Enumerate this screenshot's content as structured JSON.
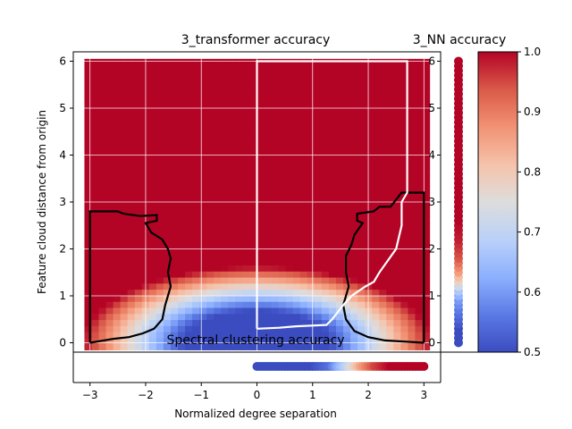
{
  "chart_data": [
    {
      "id": "main",
      "type": "heatmap",
      "title": "3_transformer accuracy",
      "xlabel": "Normalized degree separation",
      "ylabel": "Feature cloud distance from origin",
      "xlim": [
        -3.3,
        3.3
      ],
      "ylim": [
        -0.2,
        6.2
      ],
      "x_ticks": [
        -3,
        -2,
        -1,
        0,
        1,
        2,
        3
      ],
      "y_ticks": [
        0,
        1,
        2,
        3,
        4,
        5,
        6
      ],
      "x_tick_labels": [
        "−3",
        "−2",
        "−1",
        "0",
        "1",
        "2",
        "3"
      ],
      "y_tick_labels": [
        "0",
        "1",
        "2",
        "3",
        "4",
        "5",
        "6"
      ],
      "grid": true,
      "description_of_field": {
        "accuracy_range": [
          0.5,
          1.0
        ],
        "low_accuracy_dome_center_x": 0,
        "low_accuracy_dome_peak_y": 1.2
      },
      "boundary_black": [
        [
          -3.0,
          0.0
        ],
        [
          -3.0,
          2.8
        ],
        [
          -2.5,
          2.8
        ],
        [
          -2.4,
          2.75
        ],
        [
          -2.1,
          2.7
        ],
        [
          -1.8,
          2.72
        ],
        [
          -1.8,
          2.6
        ],
        [
          -2.0,
          2.55
        ],
        [
          -1.9,
          2.35
        ],
        [
          -1.7,
          2.2
        ],
        [
          -1.6,
          2.0
        ],
        [
          -1.55,
          1.8
        ],
        [
          -1.6,
          1.5
        ],
        [
          -1.55,
          1.2
        ],
        [
          -1.6,
          1.0
        ],
        [
          -1.65,
          0.8
        ],
        [
          -1.7,
          0.5
        ],
        [
          -1.85,
          0.3
        ],
        [
          -2.05,
          0.2
        ],
        [
          -2.3,
          0.12
        ],
        [
          -2.6,
          0.08
        ],
        [
          -3.0,
          0.0
        ]
      ],
      "boundary_black_right": [
        [
          3.0,
          0.0
        ],
        [
          3.0,
          3.2
        ],
        [
          2.6,
          3.2
        ],
        [
          2.4,
          2.9
        ],
        [
          2.2,
          2.9
        ],
        [
          2.1,
          2.8
        ],
        [
          1.8,
          2.75
        ],
        [
          1.8,
          2.6
        ],
        [
          1.9,
          2.55
        ],
        [
          1.75,
          2.3
        ],
        [
          1.7,
          2.1
        ],
        [
          1.6,
          1.85
        ],
        [
          1.6,
          1.5
        ],
        [
          1.65,
          1.2
        ],
        [
          1.6,
          1.0
        ],
        [
          1.55,
          0.8
        ],
        [
          1.6,
          0.5
        ],
        [
          1.75,
          0.25
        ],
        [
          2.0,
          0.12
        ],
        [
          2.3,
          0.05
        ],
        [
          3.0,
          0.0
        ]
      ],
      "boundary_white": [
        [
          0.0,
          0.3
        ],
        [
          0.0,
          6.0
        ],
        [
          2.7,
          6.0
        ],
        [
          2.7,
          3.2
        ],
        [
          2.6,
          3.0
        ],
        [
          2.6,
          2.5
        ],
        [
          2.5,
          2.0
        ],
        [
          2.2,
          1.5
        ],
        [
          2.1,
          1.3
        ],
        [
          1.95,
          1.2
        ],
        [
          1.7,
          1.0
        ],
        [
          1.55,
          0.8
        ],
        [
          1.35,
          0.5
        ],
        [
          1.25,
          0.38
        ],
        [
          0.7,
          0.35
        ],
        [
          0.4,
          0.32
        ],
        [
          0.0,
          0.3
        ]
      ]
    },
    {
      "id": "nn",
      "type": "scatter",
      "title": "3_NN accuracy",
      "axis": "Feature cloud distance from origin",
      "y_range": [
        0,
        6
      ],
      "points_x": 0,
      "accuracy_by_y": [
        [
          0.0,
          0.5
        ],
        [
          0.3,
          0.5
        ],
        [
          0.6,
          0.55
        ],
        [
          0.9,
          0.6
        ],
        [
          1.1,
          0.67
        ],
        [
          1.3,
          0.78
        ],
        [
          1.5,
          0.86
        ],
        [
          1.8,
          0.94
        ],
        [
          2.2,
          0.98
        ],
        [
          2.6,
          1.0
        ],
        [
          6.0,
          1.0
        ]
      ]
    },
    {
      "id": "spectral",
      "type": "scatter",
      "title": "Spectral clustering accuracy",
      "axis": "Normalized degree separation",
      "x_range": [
        0,
        3
      ],
      "accuracy_by_x": [
        [
          0.0,
          0.5
        ],
        [
          1.0,
          0.5
        ],
        [
          1.3,
          0.55
        ],
        [
          1.6,
          0.7
        ],
        [
          1.85,
          0.85
        ],
        [
          2.1,
          0.95
        ],
        [
          2.4,
          1.0
        ],
        [
          3.0,
          1.0
        ]
      ]
    },
    {
      "id": "colorbar",
      "type": "colorbar",
      "cmap": "coolwarm",
      "range": [
        0.5,
        1.0
      ],
      "ticks": [
        0.5,
        0.6,
        0.7,
        0.8,
        0.9,
        1.0
      ],
      "tick_labels": [
        "0.5",
        "0.6",
        "0.7",
        "0.8",
        "0.9",
        "1.0"
      ]
    }
  ],
  "colors": {
    "low": "#3b4cc0",
    "mid": "#dddddd",
    "high": "#b40426",
    "boundary_black": "#000000",
    "boundary_white": "#ffffff",
    "grid": "#ffffff"
  }
}
